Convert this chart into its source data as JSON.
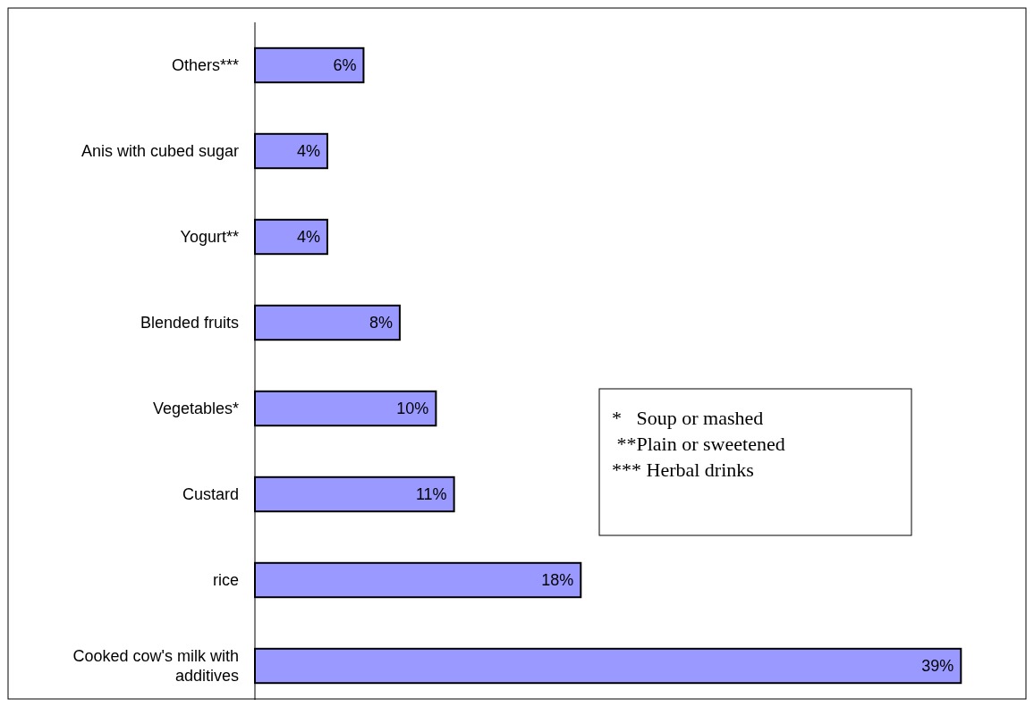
{
  "chart_data": {
    "type": "bar",
    "orientation": "horizontal",
    "categories": [
      "Others***",
      "Anis with cubed sugar",
      "Yogurt**",
      "Blended fruits",
      "Vegetables*",
      "Custard",
      "rice",
      "Cooked cow's milk with additives"
    ],
    "values": [
      6,
      4,
      4,
      8,
      10,
      11,
      18,
      39
    ],
    "value_labels": [
      "6%",
      "4%",
      "4%",
      "8%",
      "10%",
      "11%",
      "18%",
      "39%"
    ],
    "color": "#9999ff",
    "relative": false,
    "annotations": [
      "*   Soup or mashed",
      " **Plain or sweetened",
      "*** Herbal drinks"
    ]
  }
}
